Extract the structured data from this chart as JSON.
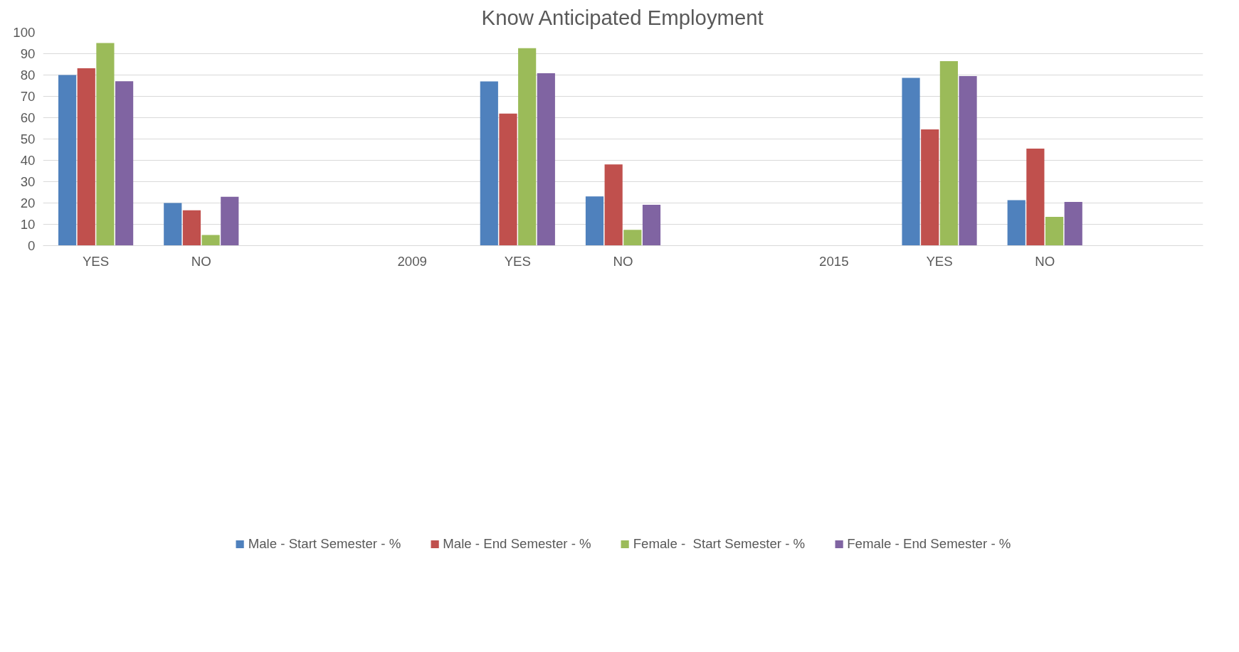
{
  "chart_data": {
    "type": "bar",
    "title": "Know Anticipated Employment",
    "categories": [
      "YES",
      "NO",
      null,
      "2009",
      "YES",
      "NO",
      null,
      "2015",
      "YES",
      "NO",
      null
    ],
    "series": [
      {
        "name": "Male - Start Semester - %",
        "color": "#4f81bd",
        "values": [
          80,
          20,
          null,
          null,
          77,
          23.1,
          null,
          null,
          78.7,
          21.3,
          null
        ]
      },
      {
        "name": "Male - End Semester - %",
        "color": "#c0504d",
        "values": [
          83.2,
          16.6,
          null,
          null,
          61.9,
          38.1,
          null,
          null,
          54.5,
          45.5,
          null
        ]
      },
      {
        "name": "Female -  Start Semester - %",
        "color": "#9bbb59",
        "values": [
          95,
          5,
          null,
          null,
          92.6,
          7.4,
          null,
          null,
          86.5,
          13.5,
          null
        ]
      },
      {
        "name": "Female - End Semester - %",
        "color": "#8064a2",
        "values": [
          77.1,
          22.9,
          null,
          null,
          80.8,
          19.2,
          null,
          null,
          79.5,
          20.5,
          null
        ]
      }
    ],
    "ylim": [
      0,
      100
    ],
    "yticks": [
      0,
      10,
      20,
      30,
      40,
      50,
      60,
      70,
      80,
      90,
      100
    ],
    "grid": "y",
    "legend": "bottom"
  }
}
